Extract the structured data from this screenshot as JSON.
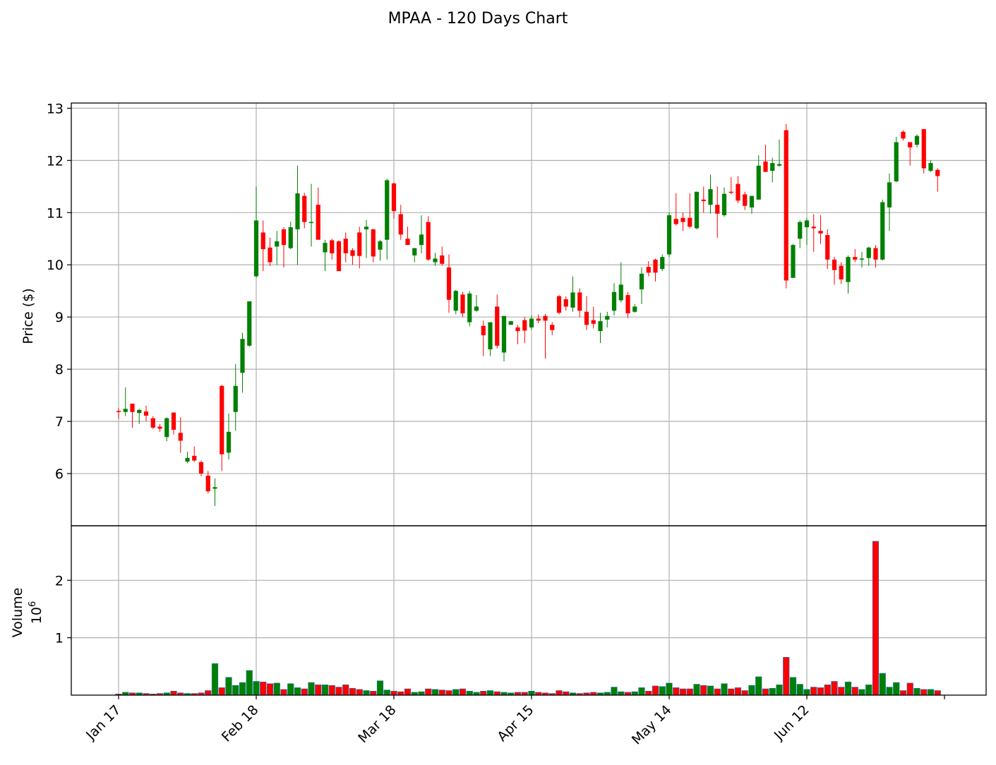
{
  "chart_data": {
    "type": "candlestick",
    "title": "MPAA - 120 Days Chart",
    "colors": {
      "up": "#008000",
      "down": "#ff0000",
      "grid": "#b0b0b0"
    },
    "price_panel": {
      "ylabel": "Price ($)",
      "ylim": [
        5.0,
        13.1
      ],
      "yticks": [
        6,
        7,
        8,
        9,
        10,
        11,
        12,
        13
      ],
      "grid": true
    },
    "volume_panel": {
      "ylabel": "Volume",
      "ylabel_unit": "10",
      "ylabel_unit_exp": "6",
      "ylim": [
        0,
        2.95
      ],
      "yticks": [
        1,
        2
      ],
      "grid": true
    },
    "x_ticks": [
      {
        "label": "Jan 17",
        "index": 0
      },
      {
        "label": "Feb 18",
        "index": 20
      },
      {
        "label": "Mar 18",
        "index": 40
      },
      {
        "label": "Apr 15",
        "index": 60
      },
      {
        "label": "May 14",
        "index": 80
      },
      {
        "label": "Jun 12",
        "index": 100
      },
      {
        "label": "",
        "index": 120
      }
    ],
    "candles": [
      [
        7.2,
        7.25,
        7.05,
        7.18,
        0.02
      ],
      [
        7.18,
        7.65,
        7.1,
        7.24,
        0.05
      ],
      [
        7.34,
        7.34,
        6.88,
        7.18,
        0.04
      ],
      [
        7.16,
        7.24,
        6.95,
        7.22,
        0.04
      ],
      [
        7.19,
        7.3,
        7.0,
        7.11,
        0.03
      ],
      [
        7.06,
        7.1,
        6.85,
        6.88,
        0.02
      ],
      [
        6.9,
        6.95,
        6.8,
        6.86,
        0.03
      ],
      [
        6.7,
        7.08,
        6.62,
        7.06,
        0.04
      ],
      [
        7.17,
        7.17,
        6.75,
        6.84,
        0.07
      ],
      [
        6.78,
        7.08,
        6.4,
        6.63,
        0.04
      ],
      [
        6.23,
        6.42,
        6.2,
        6.3,
        0.03
      ],
      [
        6.34,
        6.52,
        6.22,
        6.25,
        0.03
      ],
      [
        6.22,
        6.25,
        5.95,
        6.0,
        0.04
      ],
      [
        5.96,
        6.05,
        5.62,
        5.66,
        0.08
      ],
      [
        5.71,
        5.91,
        5.38,
        5.74,
        0.55
      ],
      [
        7.68,
        7.7,
        6.05,
        6.37,
        0.13
      ],
      [
        6.4,
        7.15,
        6.27,
        6.8,
        0.31
      ],
      [
        7.18,
        8.1,
        6.82,
        7.68,
        0.17
      ],
      [
        7.93,
        8.7,
        7.55,
        8.58,
        0.22
      ],
      [
        8.45,
        9.3,
        8.43,
        9.3,
        0.43
      ],
      [
        9.78,
        11.5,
        9.75,
        10.85,
        0.24
      ],
      [
        10.62,
        10.85,
        9.88,
        10.3,
        0.23
      ],
      [
        10.33,
        10.52,
        9.98,
        10.05,
        0.2
      ],
      [
        10.35,
        10.65,
        10.0,
        10.45,
        0.21
      ],
      [
        10.68,
        10.72,
        9.95,
        10.38,
        0.1
      ],
      [
        10.32,
        10.83,
        10.3,
        10.72,
        0.2
      ],
      [
        10.68,
        11.9,
        10.0,
        11.37,
        0.13
      ],
      [
        11.32,
        11.38,
        10.7,
        10.82,
        0.11
      ],
      [
        10.8,
        11.55,
        10.35,
        10.82,
        0.22
      ],
      [
        11.15,
        11.48,
        10.5,
        10.48,
        0.18
      ],
      [
        10.24,
        10.48,
        9.88,
        10.42,
        0.18
      ],
      [
        10.47,
        10.5,
        10.1,
        10.22,
        0.17
      ],
      [
        10.45,
        10.47,
        9.88,
        9.88,
        0.14
      ],
      [
        10.5,
        10.62,
        10.05,
        10.22,
        0.18
      ],
      [
        10.28,
        10.32,
        10.0,
        10.17,
        0.12
      ],
      [
        10.62,
        10.73,
        9.93,
        10.17,
        0.1
      ],
      [
        10.68,
        10.86,
        10.13,
        10.73,
        0.08
      ],
      [
        10.68,
        10.69,
        10.05,
        10.16,
        0.07
      ],
      [
        10.29,
        10.48,
        10.08,
        10.45,
        0.25
      ],
      [
        10.48,
        11.65,
        10.1,
        11.62,
        0.09
      ],
      [
        11.56,
        11.58,
        10.88,
        11.03,
        0.07
      ],
      [
        10.97,
        11.15,
        10.48,
        10.58,
        0.06
      ],
      [
        10.5,
        10.73,
        10.38,
        10.38,
        0.11
      ],
      [
        10.18,
        10.32,
        10.05,
        10.32,
        0.05
      ],
      [
        10.38,
        10.95,
        10.22,
        10.58,
        0.06
      ],
      [
        10.82,
        10.93,
        10.08,
        10.1,
        0.11
      ],
      [
        10.05,
        10.23,
        9.98,
        10.12,
        0.1
      ],
      [
        10.18,
        10.35,
        9.98,
        10.02,
        0.09
      ],
      [
        9.95,
        10.2,
        9.08,
        9.33,
        0.08
      ],
      [
        9.12,
        9.52,
        9.05,
        9.5,
        0.1
      ],
      [
        9.43,
        9.48,
        9.0,
        9.07,
        0.11
      ],
      [
        8.9,
        9.5,
        8.82,
        9.45,
        0.07
      ],
      [
        9.12,
        9.42,
        9.1,
        9.2,
        0.05
      ],
      [
        8.83,
        8.93,
        8.25,
        8.65,
        0.07
      ],
      [
        8.38,
        8.9,
        8.25,
        8.9,
        0.08
      ],
      [
        9.2,
        9.43,
        8.4,
        8.45,
        0.06
      ],
      [
        8.32,
        9.02,
        8.15,
        9.02,
        0.05
      ],
      [
        8.85,
        8.92,
        8.85,
        8.92,
        0.04
      ],
      [
        8.8,
        8.85,
        8.48,
        8.73,
        0.05
      ],
      [
        8.94,
        9.0,
        8.5,
        8.74,
        0.05
      ],
      [
        8.8,
        9.03,
        8.75,
        8.97,
        0.07
      ],
      [
        8.97,
        9.05,
        8.88,
        8.93,
        0.05
      ],
      [
        9.02,
        9.06,
        8.2,
        8.93,
        0.04
      ],
      [
        8.85,
        8.9,
        8.65,
        8.75,
        0.03
      ],
      [
        9.4,
        9.42,
        9.05,
        9.08,
        0.08
      ],
      [
        9.34,
        9.4,
        9.12,
        9.2,
        0.06
      ],
      [
        9.18,
        9.78,
        9.1,
        9.47,
        0.04
      ],
      [
        9.47,
        9.55,
        9.0,
        9.12,
        0.03
      ],
      [
        9.1,
        9.4,
        8.75,
        8.85,
        0.04
      ],
      [
        8.94,
        9.2,
        8.78,
        8.87,
        0.05
      ],
      [
        8.73,
        9.08,
        8.5,
        8.92,
        0.04
      ],
      [
        8.95,
        9.1,
        8.8,
        9.02,
        0.05
      ],
      [
        9.12,
        9.65,
        9.03,
        9.48,
        0.14
      ],
      [
        9.32,
        10.05,
        9.28,
        9.62,
        0.06
      ],
      [
        9.42,
        9.48,
        8.98,
        9.07,
        0.05
      ],
      [
        9.1,
        9.25,
        9.08,
        9.2,
        0.06
      ],
      [
        9.53,
        9.95,
        9.25,
        9.83,
        0.13
      ],
      [
        9.96,
        10.07,
        9.78,
        9.85,
        0.07
      ],
      [
        10.1,
        10.12,
        9.68,
        9.85,
        0.16
      ],
      [
        9.92,
        10.2,
        9.88,
        10.15,
        0.15
      ],
      [
        10.2,
        11.0,
        10.15,
        10.95,
        0.21
      ],
      [
        10.88,
        11.37,
        10.75,
        10.78,
        0.13
      ],
      [
        10.9,
        11.0,
        10.65,
        10.82,
        0.11
      ],
      [
        10.9,
        11.37,
        10.7,
        10.73,
        0.11
      ],
      [
        10.7,
        11.4,
        10.68,
        11.4,
        0.19
      ],
      [
        11.25,
        11.5,
        11.0,
        11.22,
        0.17
      ],
      [
        11.15,
        11.73,
        10.98,
        11.45,
        0.16
      ],
      [
        11.15,
        11.5,
        10.52,
        10.98,
        0.11
      ],
      [
        10.95,
        11.48,
        10.92,
        11.36,
        0.2
      ],
      [
        11.4,
        11.68,
        11.35,
        11.38,
        0.11
      ],
      [
        11.55,
        11.7,
        11.18,
        11.23,
        0.13
      ],
      [
        11.35,
        11.4,
        11.05,
        11.13,
        0.08
      ],
      [
        11.1,
        11.32,
        10.98,
        11.32,
        0.17
      ],
      [
        11.25,
        12.1,
        11.25,
        11.9,
        0.32
      ],
      [
        11.98,
        12.3,
        11.8,
        11.78,
        0.11
      ],
      [
        11.8,
        12.05,
        11.58,
        11.95,
        0.12
      ],
      [
        11.9,
        12.4,
        11.88,
        11.93,
        0.18
      ],
      [
        12.58,
        12.7,
        9.55,
        9.7,
        0.66
      ],
      [
        9.75,
        10.4,
        9.75,
        10.38,
        0.31
      ],
      [
        10.5,
        10.85,
        10.32,
        10.82,
        0.19
      ],
      [
        10.72,
        10.9,
        10.38,
        10.85,
        0.1
      ],
      [
        10.73,
        10.97,
        10.25,
        10.7,
        0.14
      ],
      [
        10.65,
        10.95,
        10.4,
        10.6,
        0.13
      ],
      [
        10.57,
        10.68,
        9.92,
        10.1,
        0.18
      ],
      [
        10.1,
        10.15,
        9.62,
        9.9,
        0.24
      ],
      [
        9.98,
        10.05,
        9.63,
        9.72,
        0.14
      ],
      [
        9.67,
        10.18,
        9.45,
        10.15,
        0.23
      ],
      [
        10.15,
        10.3,
        10.05,
        10.1,
        0.14
      ],
      [
        10.12,
        10.25,
        9.95,
        10.12,
        0.1
      ],
      [
        10.13,
        10.35,
        9.98,
        10.33,
        0.18
      ],
      [
        10.32,
        10.38,
        9.95,
        10.1,
        2.68
      ],
      [
        10.1,
        11.25,
        10.08,
        11.2,
        0.38
      ],
      [
        11.1,
        11.75,
        10.65,
        11.58,
        0.14
      ],
      [
        11.6,
        12.45,
        11.58,
        12.35,
        0.22
      ],
      [
        12.55,
        12.58,
        12.38,
        12.42,
        0.08
      ],
      [
        12.35,
        12.35,
        11.9,
        12.25,
        0.21
      ],
      [
        12.3,
        12.5,
        12.25,
        12.47,
        0.12
      ],
      [
        12.6,
        12.6,
        11.75,
        11.85,
        0.1
      ],
      [
        11.8,
        12.0,
        11.78,
        11.95,
        0.1
      ],
      [
        11.82,
        11.85,
        11.4,
        11.7,
        0.08
      ]
    ]
  }
}
